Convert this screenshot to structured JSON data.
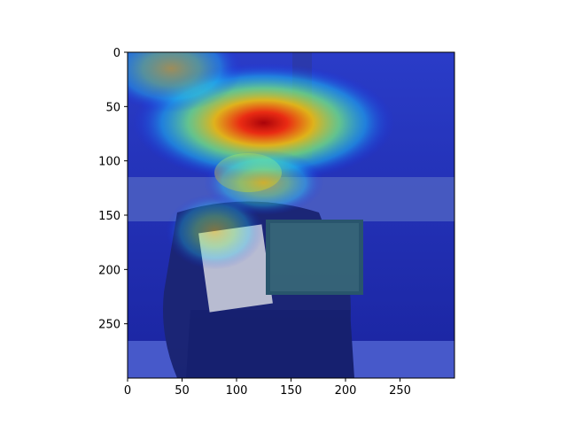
{
  "chart_data": {
    "type": "heatmap",
    "title": "",
    "xlabel": "",
    "ylabel": "",
    "xlim": [
      0,
      300
    ],
    "ylim": [
      300,
      0
    ],
    "xticks": [
      0,
      50,
      100,
      150,
      200,
      250
    ],
    "yticks": [
      0,
      50,
      100,
      150,
      200,
      250
    ],
    "grid": false,
    "colormap": "jet",
    "heatmap_blobs": [
      {
        "x": 125,
        "y": 65,
        "rx": 120,
        "ry": 55,
        "intensity": 1.0
      },
      {
        "x": 40,
        "y": 15,
        "rx": 65,
        "ry": 40,
        "intensity": 0.55
      },
      {
        "x": 125,
        "y": 120,
        "rx": 55,
        "ry": 30,
        "intensity": 0.6
      },
      {
        "x": 80,
        "y": 165,
        "rx": 45,
        "ry": 35,
        "intensity": 0.35
      }
    ],
    "background_image": {
      "subject": "man playing accordion seated outdoors",
      "colors": {
        "jacket": "#1f2f5e",
        "accordion_body": "#2f4f66",
        "keys": "#e8e8ea",
        "hedge": "#6a7a3a",
        "wall": "#5a6e84",
        "ground": "#3b4ec0"
      }
    }
  }
}
